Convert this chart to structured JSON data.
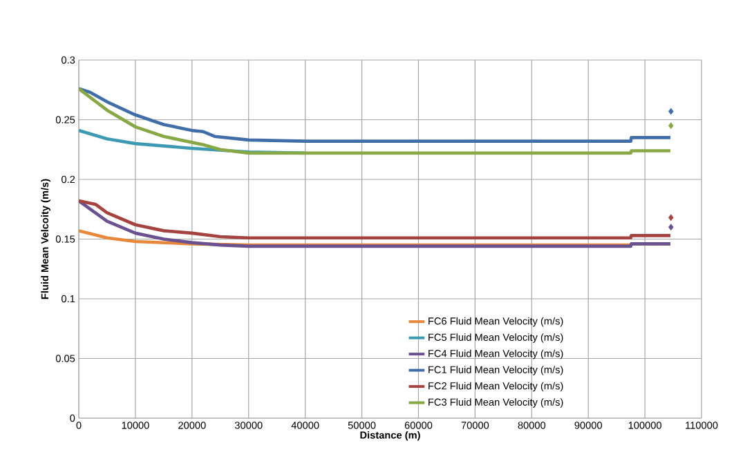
{
  "chart_data": {
    "type": "line",
    "xlabel": "Distance (m)",
    "ylabel": "Fluid Mean Velcoity (m/s)",
    "xlim": [
      0,
      110000
    ],
    "xticks": [
      0,
      10000,
      20000,
      30000,
      40000,
      50000,
      60000,
      70000,
      80000,
      90000,
      100000,
      110000
    ],
    "ylim": [
      0,
      0.3
    ],
    "yticks": [
      0,
      0.05,
      0.1,
      0.15,
      0.2,
      0.25,
      0.3
    ],
    "grid": true,
    "legend": "bottom right",
    "marker": "none",
    "line_style": "solid",
    "series": [
      {
        "name": "FC6 Fluid Mean Velocity (m/s)",
        "color": "#e8883a",
        "x": [
          0,
          5000,
          10000,
          20000,
          30000,
          40000,
          97500,
          97600,
          104500
        ],
        "values": [
          0.157,
          0.151,
          0.148,
          0.146,
          0.145,
          0.145,
          0.145,
          0.146,
          0.146
        ]
      },
      {
        "name": "FC5 Fluid Mean Velocity (m/s)",
        "color": "#3d9ab2",
        "x": [
          0,
          5000,
          10000,
          20000,
          30000,
          40000
        ],
        "values": [
          0.241,
          0.234,
          0.23,
          0.226,
          0.223,
          0.222
        ]
      },
      {
        "name": "FC4 Fluid Mean Velocity (m/s)",
        "color": "#6a5290",
        "x": [
          0,
          5000,
          10000,
          15000,
          20000,
          25000,
          30000,
          97500,
          97600,
          104500,
          104550,
          104600
        ],
        "values": [
          0.182,
          0.165,
          0.155,
          0.15,
          0.147,
          0.145,
          0.144,
          0.144,
          0.146,
          0.146,
          null,
          0.16
        ]
      },
      {
        "name": "FC1 Fluid Mean Velocity (m/s)",
        "color": "#416ea8",
        "x": [
          0,
          2000,
          5000,
          10000,
          15000,
          20000,
          22000,
          24000,
          28000,
          30000,
          40000,
          60000,
          97500,
          97600,
          104500,
          104550,
          104600
        ],
        "values": [
          0.276,
          0.273,
          0.265,
          0.254,
          0.246,
          0.241,
          0.24,
          0.236,
          0.234,
          0.233,
          0.232,
          0.232,
          0.232,
          0.235,
          0.235,
          null,
          0.257
        ]
      },
      {
        "name": "FC2 Fluid Mean Velocity (m/s)",
        "color": "#a54340",
        "x": [
          0,
          3000,
          5000,
          10000,
          15000,
          20000,
          25000,
          30000,
          97500,
          97600,
          104500,
          104550,
          104600
        ],
        "values": [
          0.182,
          0.179,
          0.172,
          0.162,
          0.157,
          0.155,
          0.152,
          0.151,
          0.151,
          0.153,
          0.153,
          null,
          0.168
        ]
      },
      {
        "name": "FC3 Fluid Mean Velocity (m/s)",
        "color": "#88a846",
        "x": [
          0,
          5000,
          10000,
          15000,
          20000,
          22000,
          25000,
          30000,
          40000,
          97500,
          97600,
          104500,
          104550,
          104600
        ],
        "values": [
          0.276,
          0.258,
          0.244,
          0.236,
          0.231,
          0.229,
          0.225,
          0.222,
          0.222,
          0.222,
          0.224,
          0.224,
          null,
          0.245
        ]
      }
    ]
  }
}
